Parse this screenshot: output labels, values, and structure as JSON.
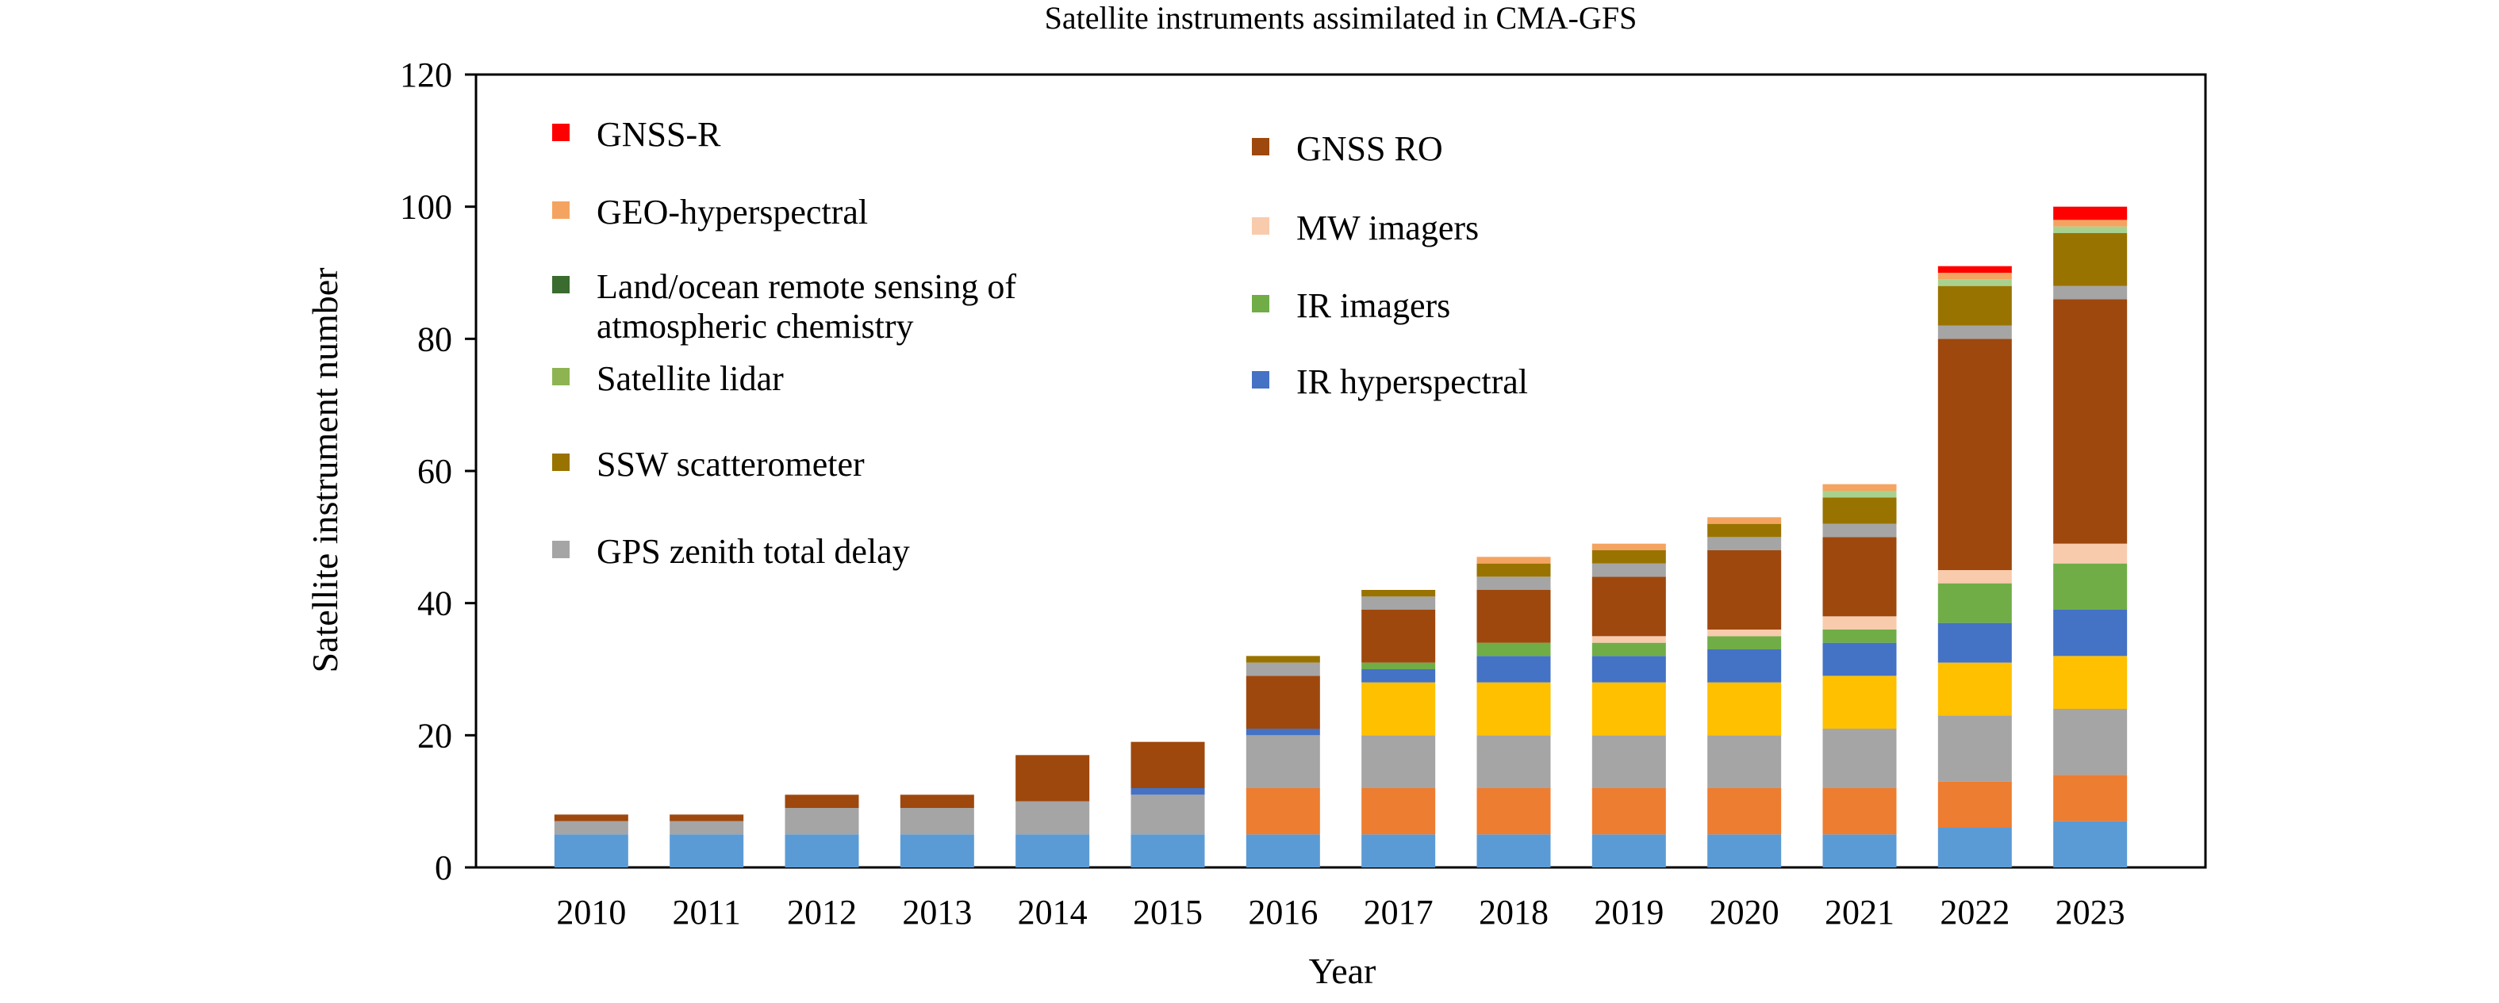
{
  "chart_data": {
    "type": "bar",
    "stacked": true,
    "title": "Satellite instruments assimilated in CMA-GFS",
    "xlabel": "Year",
    "ylabel": "Satellite instrument number",
    "ylim": [
      0,
      120
    ],
    "yticks": [
      0,
      20,
      40,
      60,
      80,
      100,
      120
    ],
    "grid": false,
    "legend_position": "inside top-left, two columns",
    "categories": [
      "2010",
      "2011",
      "2012",
      "2013",
      "2014",
      "2015",
      "2016",
      "2017",
      "2018",
      "2019",
      "2020",
      "2021",
      "2022",
      "2023"
    ],
    "series": [
      {
        "key": "s1",
        "color": "#5B9BD5",
        "values": [
          5,
          5,
          5,
          5,
          5,
          5,
          5,
          5,
          5,
          5,
          5,
          5,
          6,
          7
        ]
      },
      {
        "key": "s2",
        "color": "#ED7D31",
        "values": [
          0,
          0,
          0,
          0,
          0,
          0,
          7,
          7,
          7,
          7,
          7,
          7,
          7,
          7
        ]
      },
      {
        "key": "gps_ztd",
        "name": "GPS zenith total delay",
        "color": "#A5A5A5",
        "values": [
          2,
          2,
          4,
          4,
          5,
          6,
          8,
          8,
          8,
          8,
          8,
          9,
          10,
          10
        ]
      },
      {
        "key": "s4",
        "color": "#FFC000",
        "values": [
          0,
          0,
          0,
          0,
          0,
          0,
          0,
          8,
          8,
          8,
          8,
          8,
          8,
          8
        ]
      },
      {
        "key": "ir_hyper",
        "name": "IR hyperspectral",
        "color": "#4472C4",
        "values": [
          0,
          0,
          0,
          0,
          0,
          1,
          1,
          2,
          4,
          4,
          5,
          5,
          6,
          7
        ]
      },
      {
        "key": "ir_img",
        "name": "IR imagers",
        "color": "#70AD47",
        "values": [
          0,
          0,
          0,
          0,
          0,
          0,
          0,
          1,
          2,
          2,
          2,
          2,
          6,
          7
        ]
      },
      {
        "key": "mw_img",
        "name": "MW imagers",
        "color": "#F8CBAD",
        "values": [
          0,
          0,
          0,
          0,
          0,
          0,
          0,
          0,
          0,
          1,
          1,
          2,
          2,
          3
        ]
      },
      {
        "key": "gnss_ro",
        "name": "GNSS RO",
        "color": "#9E480E",
        "values": [
          1,
          1,
          2,
          2,
          7,
          7,
          8,
          8,
          8,
          9,
          12,
          12,
          35,
          37
        ]
      },
      {
        "key": "gps_ztd_top",
        "name": "GPS zenith total delay",
        "color": "#A5A5A5",
        "values": [
          0,
          0,
          0,
          0,
          0,
          0,
          2,
          2,
          2,
          2,
          2,
          2,
          2,
          2
        ]
      },
      {
        "key": "ssw",
        "name": "SSW scatterometer",
        "color": "#997300",
        "values": [
          0,
          0,
          0,
          0,
          0,
          0,
          1,
          1,
          2,
          2,
          2,
          4,
          6,
          8
        ]
      },
      {
        "key": "lidar",
        "name": "Satellite lidar",
        "color": "#A9D18E",
        "values": [
          0,
          0,
          0,
          0,
          0,
          0,
          0,
          0,
          0,
          0,
          0,
          1,
          1,
          1
        ]
      },
      {
        "key": "land_ocean",
        "name": "Land/ocean remote sensing of atmospheric chemistry",
        "color": "#548235",
        "values": [
          0,
          0,
          0,
          0,
          0,
          0,
          0,
          0,
          0,
          0,
          0,
          0,
          0,
          0
        ]
      },
      {
        "key": "geo_hyper",
        "name": "GEO-hyperspectral",
        "color": "#F4A460",
        "values": [
          0,
          0,
          0,
          0,
          0,
          0,
          0,
          0,
          1,
          1,
          1,
          1,
          1,
          1
        ]
      },
      {
        "key": "gnss_r",
        "name": "GNSS-R",
        "color": "#FF0000",
        "values": [
          0,
          0,
          0,
          0,
          0,
          0,
          0,
          0,
          0,
          0,
          0,
          0,
          1,
          2
        ]
      }
    ],
    "legend": {
      "left": [
        {
          "label": "GNSS-R",
          "color": "#FF0000"
        },
        {
          "label": "GEO-hyperspectral",
          "color": "#F4A460"
        },
        {
          "label": "Land/ocean remote sensing of",
          "label2": "atmospheric chemistry",
          "color": "#3A6B2F"
        },
        {
          "label": "Satellite lidar",
          "color": "#8DB451"
        },
        {
          "label": "SSW scatterometer",
          "color": "#997300"
        },
        {
          "label": "GPS zenith total delay",
          "color": "#A5A5A5"
        }
      ],
      "right": [
        {
          "label": "GNSS RO",
          "color": "#9E480E"
        },
        {
          "label": "MW imagers",
          "color": "#F8CBAD"
        },
        {
          "label": "IR imagers",
          "color": "#70AD47"
        },
        {
          "label": "IR hyperspectral",
          "color": "#4472C4"
        }
      ]
    }
  }
}
